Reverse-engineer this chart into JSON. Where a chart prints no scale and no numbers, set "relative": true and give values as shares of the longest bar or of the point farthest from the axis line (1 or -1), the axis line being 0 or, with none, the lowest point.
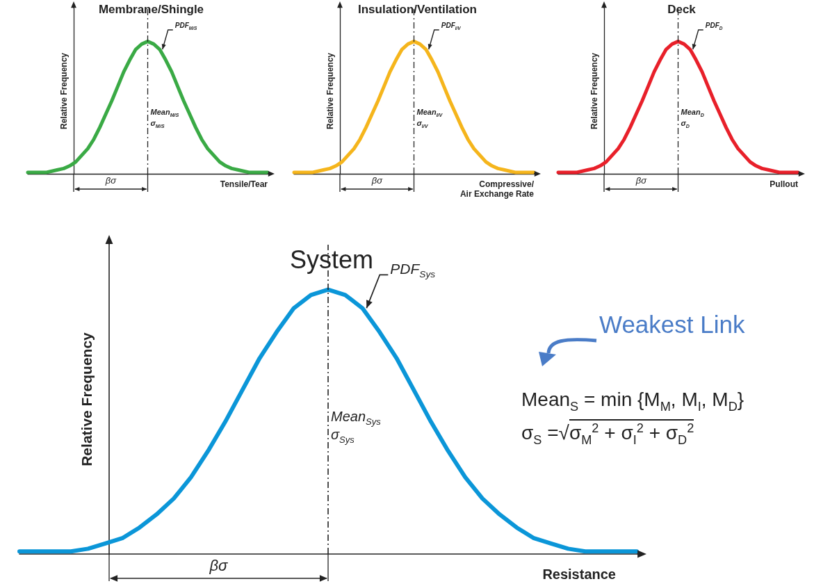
{
  "chart_data": [
    {
      "type": "line",
      "title": "Membrane/Shingle",
      "xlabel": "Tensile/Tear",
      "ylabel": "Relative Frequency",
      "relative": true,
      "marker": "none",
      "categories": [
        null,
        null,
        null,
        null,
        null,
        null,
        null,
        null,
        null,
        null,
        null,
        null,
        null,
        null,
        null,
        null,
        null,
        null,
        null,
        null,
        null,
        null,
        null,
        null,
        null,
        null,
        null,
        null,
        null,
        null,
        null,
        null,
        null,
        null,
        null,
        null,
        null,
        null,
        null,
        null,
        null
      ],
      "series": [
        {
          "color": "#3aaa45",
          "values": [
            0.01,
            0.01,
            0.01,
            0.01,
            0.02,
            0.03,
            0.04,
            0.06,
            0.09,
            0.14,
            0.19,
            0.26,
            0.35,
            0.45,
            0.55,
            0.66,
            0.77,
            0.86,
            0.94,
            0.98,
            1,
            0.98,
            0.94,
            0.86,
            0.77,
            0.66,
            0.55,
            0.45,
            0.35,
            0.26,
            0.19,
            0.14,
            0.09,
            0.06,
            0.04,
            0.03,
            0.02,
            0.01,
            0.01,
            0.01,
            0.01
          ]
        }
      ],
      "annotations": [
        "PDF$_{M/S}$",
        "Mean$_{M/S}$\nσ$_{M/S}$",
        "βσ"
      ]
    },
    {
      "type": "line",
      "title": "Insulation/Ventilation",
      "xlabel": "Compressive/\nAir Exchange Rate",
      "ylabel": "Relative Frequency",
      "relative": true,
      "marker": "none",
      "categories": [
        null,
        null,
        null,
        null,
        null,
        null,
        null,
        null,
        null,
        null,
        null,
        null,
        null,
        null,
        null,
        null,
        null,
        null,
        null,
        null,
        null,
        null,
        null,
        null,
        null,
        null,
        null,
        null,
        null,
        null,
        null,
        null,
        null,
        null,
        null,
        null,
        null,
        null,
        null,
        null,
        null
      ],
      "series": [
        {
          "color": "#f5b51c",
          "values": [
            0.01,
            0.01,
            0.01,
            0.01,
            0.02,
            0.03,
            0.04,
            0.06,
            0.09,
            0.14,
            0.19,
            0.26,
            0.35,
            0.45,
            0.55,
            0.66,
            0.77,
            0.86,
            0.94,
            0.98,
            1,
            0.98,
            0.94,
            0.86,
            0.77,
            0.66,
            0.55,
            0.45,
            0.35,
            0.26,
            0.19,
            0.14,
            0.09,
            0.06,
            0.04,
            0.03,
            0.02,
            0.01,
            0.01,
            0.01,
            0.01
          ]
        }
      ],
      "annotations": [
        "PDF$_{I/V}$",
        "Mean$_{I/V}$\nσ$_{I/V}$",
        "βσ"
      ]
    },
    {
      "type": "line",
      "title": "Deck",
      "xlabel": "Pullout",
      "ylabel": "Relative Frequency",
      "relative": true,
      "marker": "none",
      "categories": [
        null,
        null,
        null,
        null,
        null,
        null,
        null,
        null,
        null,
        null,
        null,
        null,
        null,
        null,
        null,
        null,
        null,
        null,
        null,
        null,
        null,
        null,
        null,
        null,
        null,
        null,
        null,
        null,
        null,
        null,
        null,
        null,
        null,
        null,
        null,
        null,
        null,
        null,
        null,
        null,
        null
      ],
      "series": [
        {
          "color": "#e8202a",
          "values": [
            0.01,
            0.01,
            0.01,
            0.01,
            0.02,
            0.03,
            0.04,
            0.06,
            0.09,
            0.14,
            0.19,
            0.26,
            0.35,
            0.45,
            0.55,
            0.66,
            0.77,
            0.86,
            0.94,
            0.98,
            1,
            0.98,
            0.94,
            0.86,
            0.77,
            0.66,
            0.55,
            0.45,
            0.35,
            0.26,
            0.19,
            0.14,
            0.09,
            0.06,
            0.04,
            0.03,
            0.02,
            0.01,
            0.01,
            0.01,
            0.01
          ]
        }
      ],
      "annotations": [
        "PDF$_{D}$",
        "Mean$_{D}$\nσ$_{D}$",
        "βσ"
      ]
    },
    {
      "type": "line",
      "title": "System",
      "xlabel": "Resistance",
      "ylabel": "Relative Frequency",
      "relative": true,
      "marker": "none",
      "categories": [
        null,
        null,
        null,
        null,
        null,
        null,
        null,
        null,
        null,
        null,
        null,
        null,
        null,
        null,
        null,
        null,
        null,
        null,
        null,
        null,
        null,
        null,
        null,
        null,
        null,
        null,
        null,
        null,
        null,
        null,
        null,
        null,
        null,
        null,
        null,
        null,
        null
      ],
      "series": [
        {
          "color": "#0b96d8",
          "values": [
            0.01,
            0.01,
            0.01,
            0.01,
            0.02,
            0.04,
            0.06,
            0.1,
            0.15,
            0.21,
            0.29,
            0.39,
            0.5,
            0.62,
            0.74,
            0.84,
            0.93,
            0.98,
            1,
            0.98,
            0.93,
            0.84,
            0.74,
            0.62,
            0.5,
            0.39,
            0.29,
            0.21,
            0.15,
            0.1,
            0.06,
            0.04,
            0.02,
            0.01,
            0.01,
            0.01,
            0.01
          ]
        }
      ],
      "annotations": [
        "PDF$_{Sys}$",
        "Mean$_{Sys}$\nσ$_{Sys}$",
        "βσ",
        "Weakest Link",
        "Mean$_{S}$ = min {M$_{M}$, M$_{I}$, M$_{D}$}",
        "σ$_{S}$ =√σ$_{M}$$^{2}$ + σ$_{I}$$^{2}$ + σ$_{D}$$^{2}$"
      ]
    }
  ]
}
